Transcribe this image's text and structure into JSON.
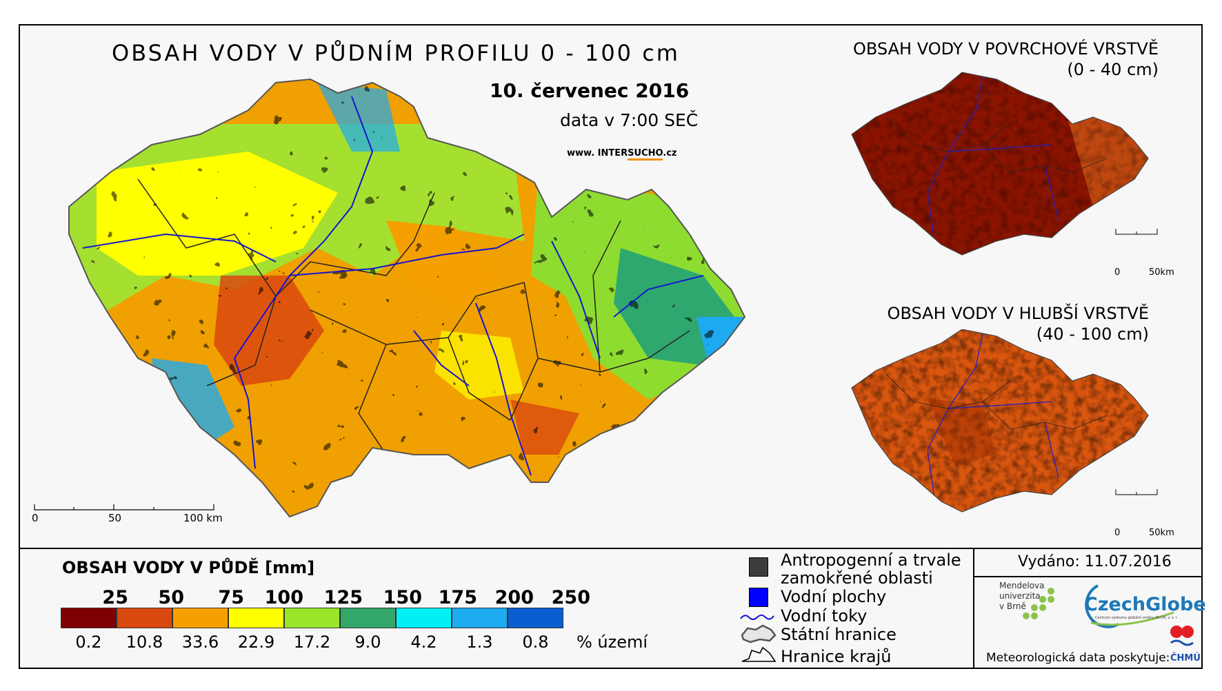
{
  "main_map": {
    "title": "OBSAH VODY V PŮDNÍM PROFILU 0 - 100 cm",
    "date": "10. červenec 2016",
    "time": "data v 7:00 SEČ",
    "website_prefix": "www. INTER",
    "website_highlight": "SUCHO",
    "website_suffix": ".cz",
    "scale_labels": [
      "0",
      "50",
      "100 km"
    ]
  },
  "surface_map": {
    "title_line1": "OBSAH VODY V POVRCHOVÉ VRSTVĚ",
    "title_line2": "(0 - 40 cm)",
    "scale_labels": [
      "0",
      "50km"
    ]
  },
  "deep_map": {
    "title_line1": "OBSAH VODY V HLUBŠÍ VRSTVĚ",
    "title_line2": "(40 - 100 cm)",
    "scale_labels": [
      "0",
      "50km"
    ]
  },
  "legend": {
    "title": "OBSAH VODY V PŮDĚ [mm]",
    "thresholds": [
      "25",
      "50",
      "75",
      "100",
      "125",
      "150",
      "175",
      "200",
      "250"
    ],
    "classes": [
      {
        "color": "#7f0000",
        "percent": "0.2"
      },
      {
        "color": "#d9480f",
        "percent": "10.8"
      },
      {
        "color": "#f5a000",
        "percent": "33.6"
      },
      {
        "color": "#ffff00",
        "percent": "22.9"
      },
      {
        "color": "#9ae62a",
        "percent": "17.2"
      },
      {
        "color": "#33a66a",
        "percent": "9.0"
      },
      {
        "color": "#00f0f5",
        "percent": "4.2"
      },
      {
        "color": "#1eaaf0",
        "percent": "1.3"
      },
      {
        "color": "#0a5fd0",
        "percent": "0.8"
      }
    ],
    "percent_unit": "% území"
  },
  "symbols": {
    "anthropogenic_line1": "Antropogenní a trvale",
    "anthropogenic_line2": "zamokřené oblasti",
    "water_bodies": "Vodní plochy",
    "rivers": "Vodní toky",
    "state_border": "Státní hranice",
    "region_border": "Hranice krajů",
    "colors": {
      "anthropogenic": "#3c3c3c",
      "water": "#0000ff",
      "river": "#1010d0"
    }
  },
  "footer": {
    "issued": "Vydáno: 11.07.2016",
    "mendel_line1": "Mendelova",
    "mendel_line2": "univerzita",
    "mendel_line3": "v Brně",
    "czechglobe": "CzechGlobe",
    "czechglobe_sub": "Centrum výzkumu globální změny AV ČR, v. v. i.",
    "meteo": "Meteorologická data poskytuje:",
    "chmu": "ČHMÚ"
  }
}
